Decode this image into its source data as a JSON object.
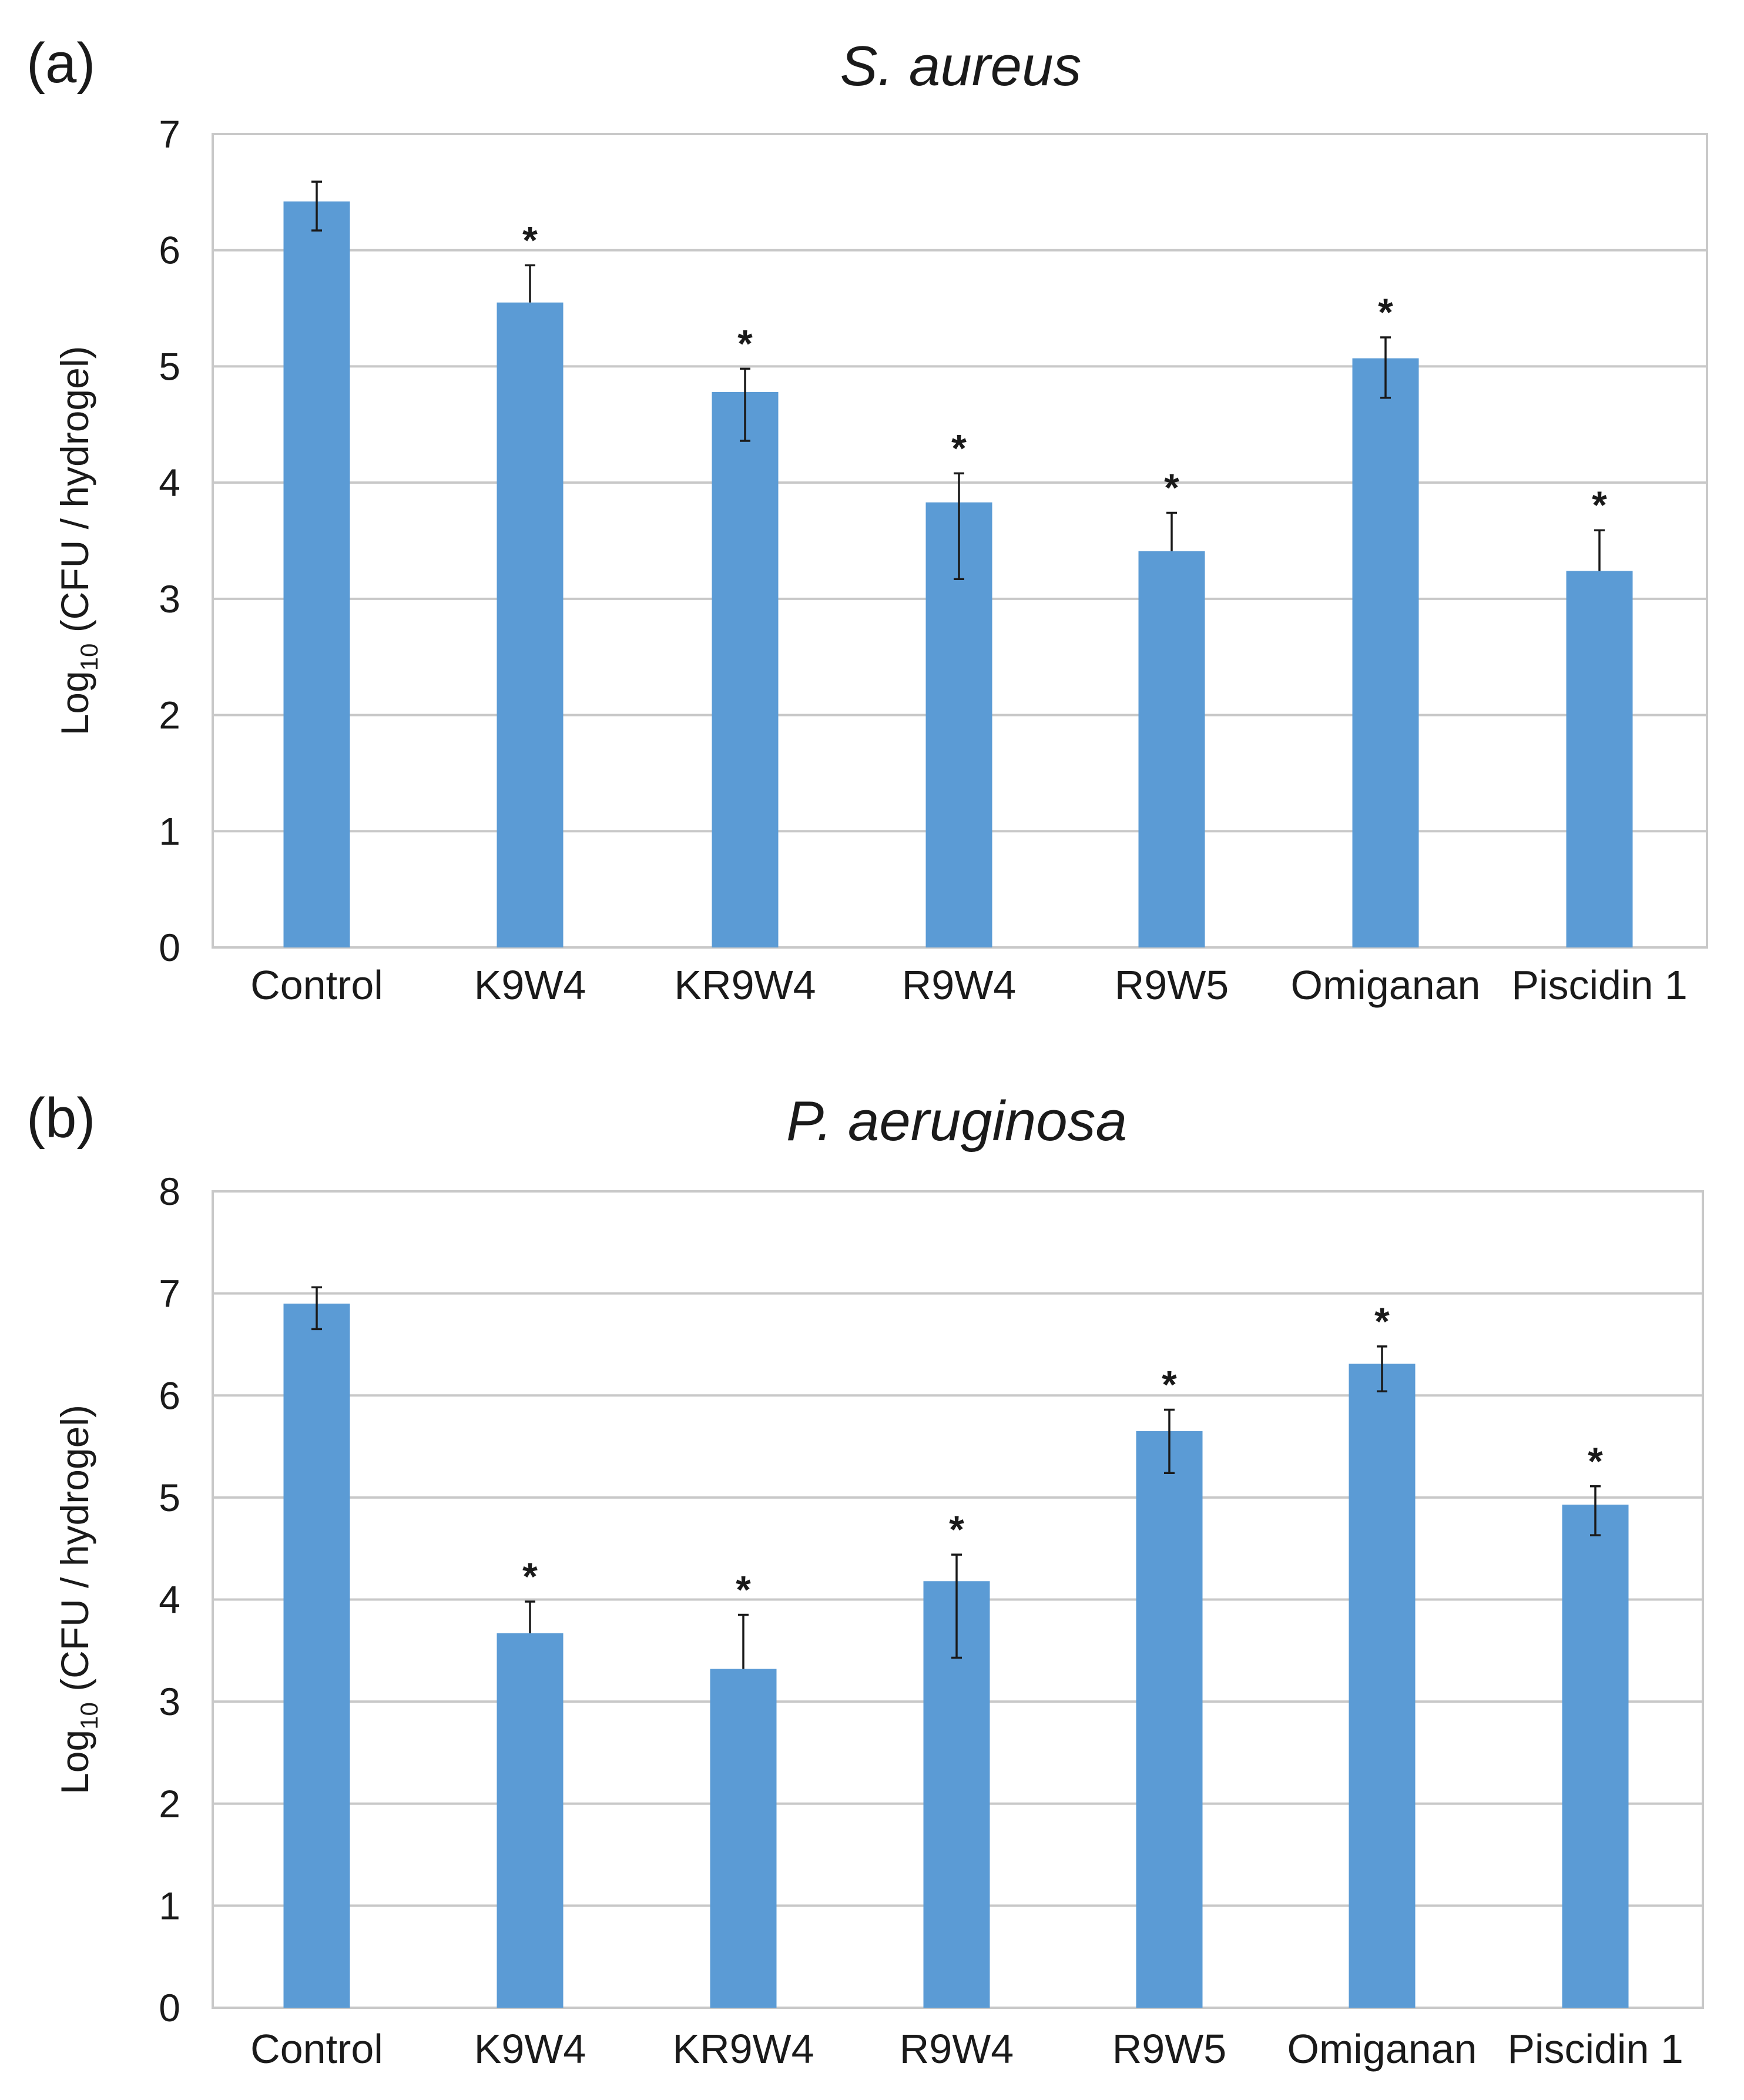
{
  "chart_data": [
    {
      "panel_label": "(a)",
      "type": "bar",
      "title": "S. aureus",
      "ylabel_main": "Log",
      "ylabel_subscript": "10",
      "ylabel_rest": " (CFU / hydrogel)",
      "xlabel": "",
      "ylim": [
        0,
        7
      ],
      "yticks": [
        "0",
        "1",
        "2",
        "3",
        "4",
        "5",
        "6",
        "7"
      ],
      "grid": true,
      "categories": [
        "Control",
        "K9W4",
        "KR9W4",
        "R9W4",
        "R9W5",
        "Omiganan",
        "Piscidin 1"
      ],
      "values": [
        6.42,
        5.55,
        4.78,
        3.83,
        3.41,
        5.07,
        3.24
      ],
      "error_upper": [
        0.17,
        0.32,
        0.2,
        0.25,
        0.33,
        0.18,
        0.35
      ],
      "error_lower": [
        0.25,
        0.0,
        0.42,
        0.66,
        0.0,
        0.34,
        0.0
      ],
      "significance": [
        "",
        "*",
        "*",
        "*",
        "*",
        "*",
        "*"
      ]
    },
    {
      "panel_label": "(b)",
      "type": "bar",
      "title": "P. aeruginosa",
      "ylabel_main": "Log",
      "ylabel_subscript": "10",
      "ylabel_rest": " (CFU / hydrogel)",
      "xlabel": "",
      "ylim": [
        0,
        8
      ],
      "yticks": [
        "0",
        "1",
        "2",
        "3",
        "4",
        "5",
        "6",
        "7",
        "8"
      ],
      "grid": true,
      "categories": [
        "Control",
        "K9W4",
        "KR9W4",
        "R9W4",
        "R9W5",
        "Omiganan",
        "Piscidin 1"
      ],
      "values": [
        6.9,
        3.67,
        3.32,
        4.18,
        5.65,
        6.31,
        4.93
      ],
      "error_upper": [
        0.16,
        0.31,
        0.53,
        0.26,
        0.21,
        0.17,
        0.18
      ],
      "error_lower": [
        0.25,
        0.0,
        0.0,
        0.75,
        0.41,
        0.27,
        0.3
      ],
      "significance": [
        "",
        "*",
        "*",
        "*",
        "*",
        "*",
        "*"
      ]
    }
  ]
}
